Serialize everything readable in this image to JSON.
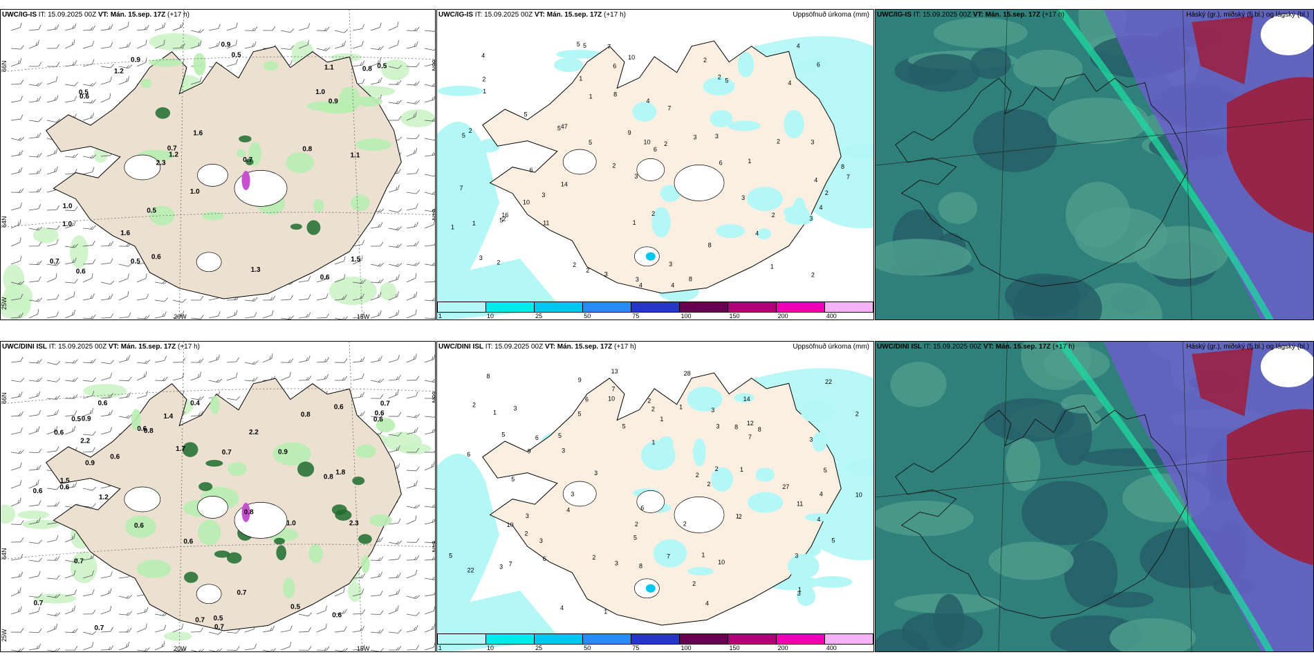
{
  "rows": [
    {
      "wind_title": {
        "model": "UWC/IG-IS",
        "it": "IT: 15.09.2025 00Z",
        "vt": "VT: Mán. 15.sep. 17Z",
        "lead": "(+17 h)"
      },
      "precip_title": {
        "model": "UWC/IG-IS",
        "it": "IT: 15.09.2025 00Z",
        "vt": "VT: Mán. 15.sep. 17Z",
        "lead": "(+17 h)",
        "right": "Uppsöfnuð úrkoma (mm)"
      },
      "cloud_title": {
        "model": "UWC/IG-IS",
        "it": "IT: 15.09.2025 00Z",
        "vt": "VT: Mán. 15.sep. 17Z",
        "lead": "(+17 h)",
        "right": "Háský (gr.), miðský (fj.bl.) og lágský (bl.)"
      },
      "wind_labels": [
        "1.2",
        "1.1",
        "1.2",
        "0.6",
        "1.0",
        "0.6",
        "0.7",
        "0.5",
        "0.5",
        "0.8",
        "1.0",
        "0.9",
        "0.5",
        "0.5",
        "0.6",
        "0.5",
        "0.6",
        "0.9",
        "0.9",
        "1.3",
        "1.0",
        "0.7",
        "0.8",
        "1.6",
        "1.0",
        "1.5",
        "1.6",
        "0.7",
        "2.3",
        "1.1"
      ],
      "precip_labels": [
        "2",
        "6",
        "10",
        "1",
        "1",
        "2",
        "3",
        "5",
        "3",
        "4",
        "5",
        "7",
        "9",
        "3",
        "2",
        "2",
        "6",
        "4",
        "3",
        "3",
        "2",
        "1",
        "4",
        "8",
        "10",
        "7",
        "3",
        "4",
        "6",
        "3",
        "2",
        "4",
        "2",
        "5",
        "6",
        "5",
        "8",
        "5",
        "10",
        "11",
        "2",
        "3",
        "4",
        "5",
        "4",
        "2",
        "4",
        "2",
        "5",
        "1",
        "3",
        "6",
        "8",
        "7",
        "5",
        "4",
        "7",
        "1",
        "1",
        "3",
        "2",
        "3",
        "2",
        "1",
        "2",
        "8",
        "47",
        "1",
        "2",
        "2",
        "14",
        "16"
      ],
      "axis": {
        "lat1": "66N",
        "lat2": "64N",
        "lon1": "20W",
        "lon2": "15W",
        "lon0": "25W"
      }
    },
    {
      "wind_title": {
        "model": "UWC/DINI ISL",
        "it": "IT: 15.09.2025 00Z",
        "vt": "VT: Mán. 15.sep. 17Z",
        "lead": "(+17 h)"
      },
      "precip_title": {
        "model": "UWC/DINI ISL",
        "it": "IT: 15.09.2025 00Z",
        "vt": "VT: Mán. 15.sep. 17Z",
        "lead": "(+17 h)",
        "right": "Uppsöfnuð úrkoma (mm)"
      },
      "cloud_title": {
        "model": "UWC/DINI ISL",
        "it": "IT: 15.09.2025 00Z",
        "vt": "VT: Mán. 15.sep. 17Z",
        "lead": "(+17 h)",
        "right": "Háský (gr.), miðský (fj.bl.) og lágský (bl.)"
      },
      "wind_labels": [
        "0.7",
        "0.7",
        "0.7",
        "0.5",
        "1.0",
        "0.6",
        "2.2",
        "0.7",
        "0.6",
        "0.9",
        "1.2",
        "0.6",
        "0.4",
        "1.5",
        "2.2",
        "1.8",
        "0.6",
        "0.8",
        "0.9",
        "0.6",
        "0.8",
        "0.6",
        "1.4",
        "0.7",
        "0.6",
        "0.5",
        "0.7",
        "0.9",
        "1.7",
        "0.8",
        "0.6",
        "0.7",
        "0.5",
        "0.6",
        "0.6",
        "0.6",
        "0.7",
        "2.3",
        "0.6",
        "0.8"
      ],
      "precip_labels": [
        "1",
        "1",
        "2",
        "2",
        "1",
        "5",
        "1",
        "1",
        "2",
        "10",
        "3",
        "5",
        "2",
        "2",
        "3",
        "4",
        "13",
        "3",
        "5",
        "6",
        "8",
        "4",
        "2",
        "6",
        "1",
        "7",
        "12",
        "3",
        "5",
        "3",
        "8",
        "22",
        "7",
        "6",
        "27",
        "14",
        "22",
        "28",
        "10",
        "5",
        "10",
        "6",
        "5",
        "7",
        "4",
        "2",
        "5",
        "3",
        "6",
        "2",
        "1",
        "3",
        "4",
        "5",
        "3",
        "2",
        "2",
        "1",
        "2",
        "4",
        "8",
        "9",
        "9",
        "8",
        "10",
        "7",
        "11",
        "2",
        "3",
        "3",
        "2",
        "3",
        "3",
        "3",
        "1",
        "5"
      ],
      "axis": {
        "lat1": "66N",
        "lat2": "64N",
        "lon1": "20W",
        "lon2": "15W",
        "lon0": "25W"
      }
    }
  ],
  "colorbar": {
    "ticks": [
      "1",
      "10",
      "25",
      "50",
      "75",
      "100",
      "150",
      "200",
      "400"
    ],
    "colors": [
      "#b3f7f7",
      "#00ecec",
      "#00c8f0",
      "#2a8af5",
      "#2636c8",
      "#6a0050",
      "#b00078",
      "#f000b4",
      "#f5b3f5"
    ]
  }
}
